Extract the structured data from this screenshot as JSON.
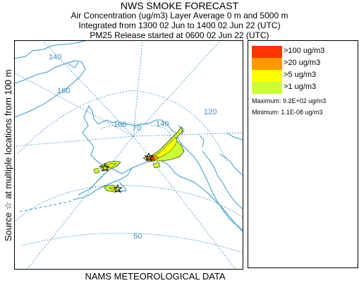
{
  "header": {
    "title": "NWS SMOKE FORECAST",
    "line2": "Air Concentration (ug/m3) Layer Average    0 m and  5000 m",
    "line3": "Integrated from 1300 02 Jun to 1400 02 Jun 22 (UTC)",
    "line4": "PM25 Release started at 0600 02 Jun 22 (UTC)"
  },
  "side_label": "Source ☆  at multiple locations   from  100 m",
  "footer": "NAMS METEOROLOGICAL DATA",
  "legend": {
    "items": [
      {
        "label": ">100 ug/m3",
        "color": "#ff3300"
      },
      {
        "label": ">20 ug/m3",
        "color": "#ff9900"
      },
      {
        "label": ">5 ug/m3",
        "color": "#ffff00"
      },
      {
        "label": ">1 ug/m3",
        "color": "#ccff33"
      }
    ],
    "maximum": "Maximum: 9.2E+02 ug/m3",
    "minimum": "Minimum: 1.1E-08 ug/m3"
  },
  "map": {
    "lat_labels": [
      "70",
      "50"
    ],
    "lon_labels": [
      "140",
      "160",
      "160",
      "140",
      "120"
    ],
    "coast_color": "#3399cc",
    "grid_color": "#3a8fc0"
  }
}
